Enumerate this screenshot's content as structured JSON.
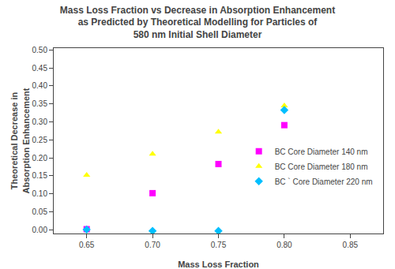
{
  "chart_data": {
    "type": "scatter",
    "title": "Mass Loss Fraction vs Decrease in Absorption Enhancement\nas Predicted by Theoretical Modelling for Particles of\n580 nm Initial Shell Diameter",
    "x_label": "Mass Loss Fraction",
    "y_label": "Theoretical Decrease in Absorption Enhancement",
    "xlim": [
      0.625,
      0.875
    ],
    "ylim": [
      -0.01,
      0.505
    ],
    "xticks": [
      0.65,
      {
        "value": 0.7,
        "label": "0.70"
      },
      0.75,
      {
        "value": 0.8,
        "label": "0.80"
      },
      0.85
    ],
    "yticks": [
      {
        "value": 0,
        "label": "0.00"
      },
      0.05,
      {
        "value": 0.1,
        "label": "0.10"
      },
      0.15,
      {
        "value": 0.2,
        "label": "0.20"
      },
      0.25,
      {
        "value": 0.3,
        "label": "0.30"
      },
      0.35,
      {
        "value": 0.4,
        "label": "0.40"
      },
      0.45,
      {
        "value": 0.5,
        "label": "0.50"
      }
    ],
    "grid": false,
    "legend": "lower right",
    "series": [
      {
        "name": "BC Core Diameter 140 nm",
        "color": "#FF00FF",
        "marker": "square",
        "x": [
          0.65,
          0.7,
          0.75,
          0.8
        ],
        "values": [
          0.002,
          0.102,
          0.183,
          0.291
        ]
      },
      {
        "name": "BC Core Diameter 180 nm",
        "color": "#FFFF00",
        "marker": "triangle-up",
        "x": [
          0.65,
          0.7,
          0.75,
          0.8
        ],
        "values": [
          0.152,
          0.211,
          0.272,
          0.345
        ]
      },
      {
        "name": "BC ` Core Diameter 220 nm",
        "color": "#00BFFF",
        "marker": "diamond",
        "x": [
          0.65,
          0.7,
          0.75,
          0.8
        ],
        "values": [
          0.001,
          -0.003,
          -0.003,
          0.333
        ]
      }
    ]
  }
}
